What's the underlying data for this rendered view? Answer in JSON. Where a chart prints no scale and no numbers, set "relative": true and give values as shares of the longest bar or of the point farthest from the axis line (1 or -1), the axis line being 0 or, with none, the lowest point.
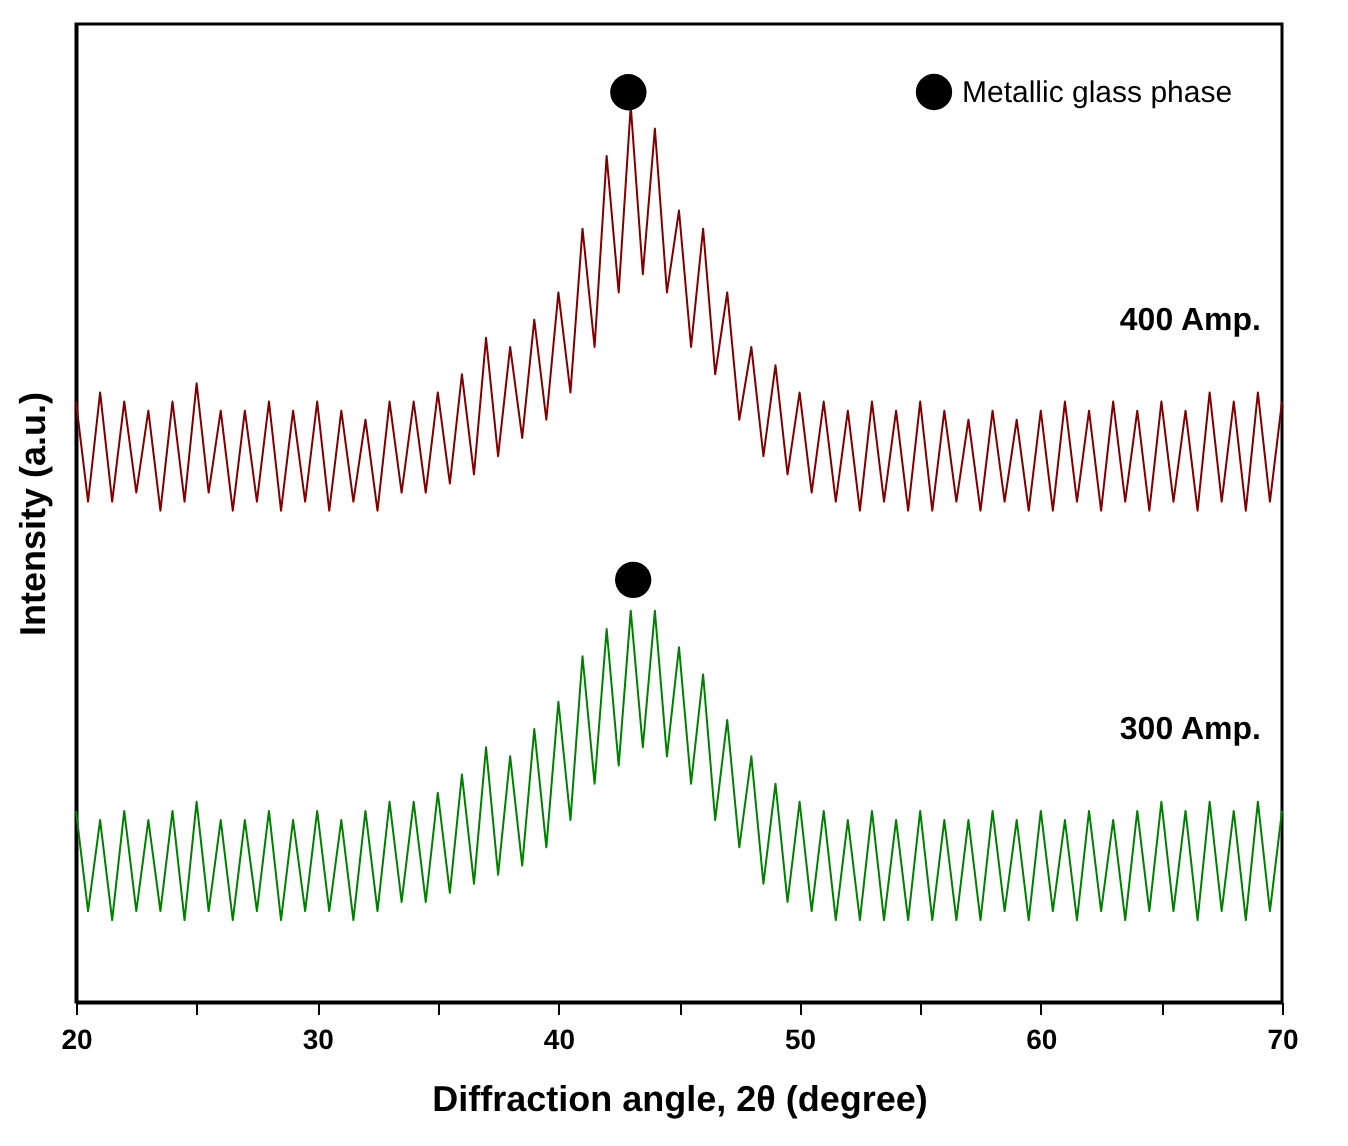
{
  "chart_data": {
    "type": "line",
    "xlabel": "Diffraction angle, 2θ (degree)",
    "ylabel": "Intensity (a.u.)",
    "relative": true,
    "tick_labels": "x",
    "legend": "top right",
    "xlim": [
      20,
      70
    ],
    "xticks": [
      20,
      {
        "value": 25,
        "label": null
      },
      30,
      {
        "value": 35,
        "label": null
      },
      40,
      {
        "value": 45,
        "label": null
      },
      50,
      {
        "value": 55,
        "label": null
      },
      60,
      {
        "value": 65,
        "label": null
      },
      70
    ],
    "x": [
      20,
      20.5,
      21,
      21.5,
      22,
      22.5,
      23,
      23.5,
      24,
      24.5,
      25,
      25.5,
      26,
      26.5,
      27,
      27.5,
      28,
      28.5,
      29,
      29.5,
      30,
      30.5,
      31,
      31.5,
      32,
      32.5,
      33,
      33.5,
      34,
      34.5,
      35,
      35.5,
      36,
      36.5,
      37,
      37.5,
      38,
      38.5,
      39,
      39.5,
      40,
      40.5,
      41,
      41.5,
      42,
      42.5,
      43,
      43.5,
      44,
      44.5,
      45,
      45.5,
      46,
      46.5,
      47,
      47.5,
      48,
      48.5,
      49,
      49.5,
      50,
      50.5,
      51,
      51.5,
      52,
      52.5,
      53,
      53.5,
      54,
      54.5,
      55,
      55.5,
      56,
      56.5,
      57,
      57.5,
      58,
      58.5,
      59,
      59.5,
      60,
      60.5,
      61,
      61.5,
      62,
      62.5,
      63,
      63.5,
      64,
      64.5,
      65,
      65.5,
      66,
      66.5,
      67,
      67.5,
      68,
      68.5,
      69,
      69.5,
      70
    ],
    "series": [
      {
        "name": "400 Amp.",
        "color": "#800000",
        "values": [
          0.66,
          0.55,
          0.67,
          0.55,
          0.66,
          0.56,
          0.65,
          0.54,
          0.66,
          0.55,
          0.68,
          0.56,
          0.65,
          0.54,
          0.65,
          0.55,
          0.66,
          0.54,
          0.65,
          0.55,
          0.66,
          0.54,
          0.65,
          0.55,
          0.64,
          0.54,
          0.66,
          0.56,
          0.66,
          0.56,
          0.67,
          0.57,
          0.69,
          0.58,
          0.73,
          0.6,
          0.72,
          0.62,
          0.75,
          0.64,
          0.78,
          0.67,
          0.85,
          0.72,
          0.93,
          0.78,
          0.985,
          0.8,
          0.96,
          0.78,
          0.87,
          0.72,
          0.85,
          0.69,
          0.78,
          0.64,
          0.72,
          0.6,
          0.7,
          0.58,
          0.67,
          0.56,
          0.66,
          0.55,
          0.65,
          0.54,
          0.66,
          0.55,
          0.65,
          0.54,
          0.66,
          0.54,
          0.65,
          0.55,
          0.64,
          0.54,
          0.65,
          0.55,
          0.64,
          0.54,
          0.65,
          0.54,
          0.66,
          0.55,
          0.65,
          0.54,
          0.66,
          0.55,
          0.65,
          0.54,
          0.66,
          0.55,
          0.65,
          0.54,
          0.67,
          0.55,
          0.66,
          0.54,
          0.67,
          0.55,
          0.66
        ]
      },
      {
        "name": "300 Amp.",
        "color": "#008000",
        "values": [
          0.21,
          0.1,
          0.2,
          0.09,
          0.21,
          0.1,
          0.2,
          0.1,
          0.21,
          0.09,
          0.22,
          0.1,
          0.2,
          0.09,
          0.2,
          0.1,
          0.21,
          0.09,
          0.2,
          0.1,
          0.21,
          0.1,
          0.2,
          0.09,
          0.21,
          0.1,
          0.22,
          0.11,
          0.22,
          0.11,
          0.23,
          0.12,
          0.25,
          0.13,
          0.28,
          0.14,
          0.27,
          0.15,
          0.3,
          0.17,
          0.33,
          0.2,
          0.38,
          0.24,
          0.41,
          0.26,
          0.43,
          0.28,
          0.43,
          0.27,
          0.39,
          0.24,
          0.36,
          0.2,
          0.31,
          0.17,
          0.27,
          0.13,
          0.24,
          0.11,
          0.22,
          0.1,
          0.21,
          0.09,
          0.2,
          0.09,
          0.21,
          0.09,
          0.2,
          0.09,
          0.21,
          0.09,
          0.2,
          0.09,
          0.2,
          0.09,
          0.21,
          0.1,
          0.2,
          0.09,
          0.21,
          0.1,
          0.2,
          0.09,
          0.21,
          0.1,
          0.2,
          0.09,
          0.21,
          0.1,
          0.22,
          0.1,
          0.21,
          0.09,
          0.22,
          0.1,
          0.21,
          0.09,
          0.22,
          0.1,
          0.21
        ]
      },
      {
        "name": "Metallic glass phase",
        "type": "scatter",
        "color": "#000000",
        "marker": "circle",
        "x": [
          42.9,
          43.1
        ],
        "values": [
          1,
          0.464
        ]
      }
    ]
  }
}
